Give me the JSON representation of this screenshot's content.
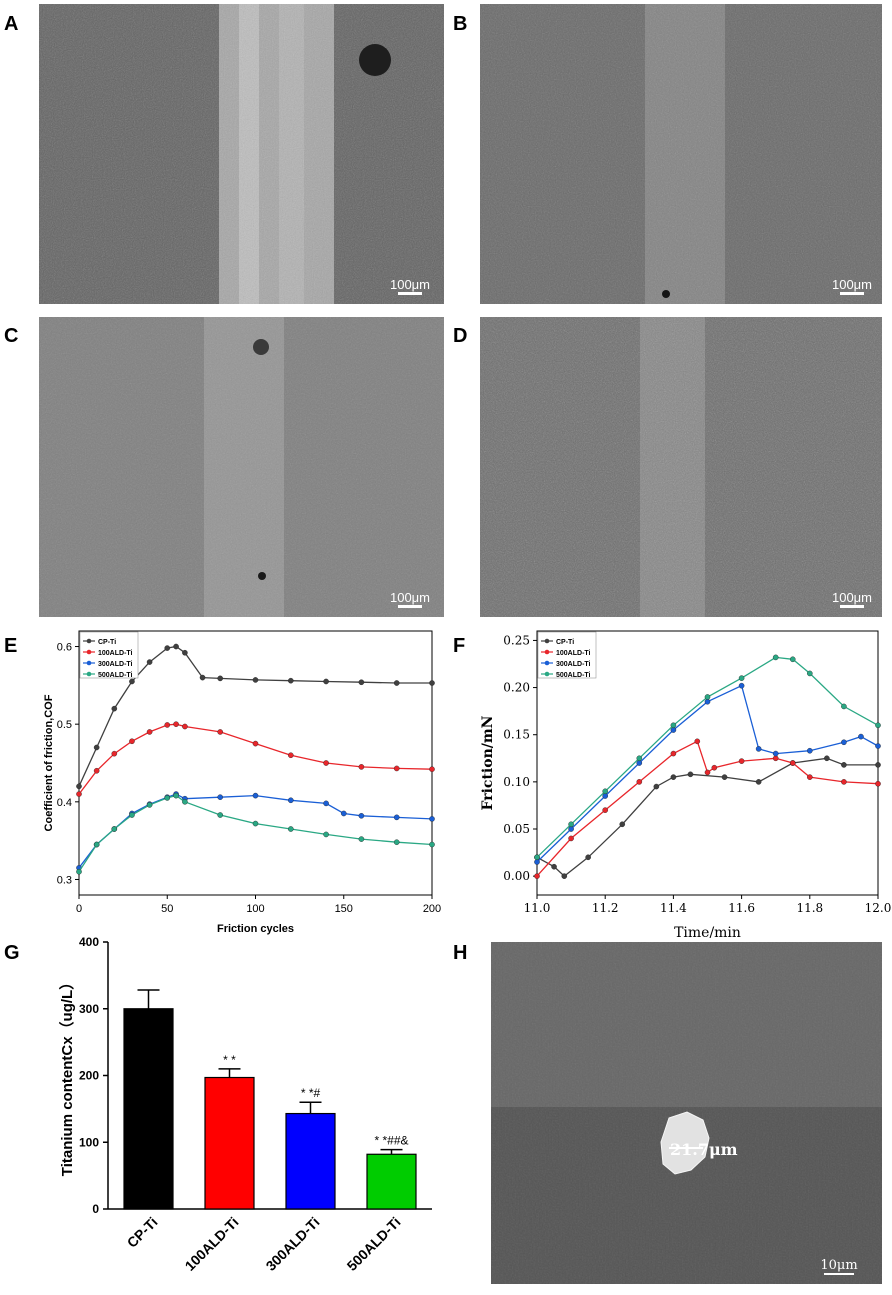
{
  "panels": {
    "A": {
      "letter": "A",
      "scale": "100μm"
    },
    "B": {
      "letter": "B",
      "scale": "100μm"
    },
    "C": {
      "letter": "C",
      "scale": "100μm"
    },
    "D": {
      "letter": "D",
      "scale": "100μm"
    },
    "E": {
      "letter": "E"
    },
    "F": {
      "letter": "F"
    },
    "G": {
      "letter": "G"
    },
    "H": {
      "letter": "H",
      "scale": "10μm",
      "particle_label": "21.7μm"
    }
  },
  "chart_data": [
    {
      "id": "E",
      "type": "line",
      "xlabel": "Friction cycles",
      "ylabel": "Coefficient of friction,COF",
      "xlim": [
        0,
        200
      ],
      "ylim": [
        0.28,
        0.62
      ],
      "xticks": [
        "0",
        "50",
        "100",
        "150",
        "200"
      ],
      "yticks": [
        "0.3",
        "0.4",
        "0.5",
        "0.6"
      ],
      "legend": "top-left",
      "series": [
        {
          "name": "CP-Ti",
          "color": "#404040",
          "x": [
            0,
            10,
            20,
            30,
            40,
            50,
            55,
            60,
            70,
            80,
            100,
            120,
            140,
            160,
            180,
            200
          ],
          "y": [
            0.42,
            0.47,
            0.52,
            0.555,
            0.58,
            0.598,
            0.6,
            0.592,
            0.56,
            0.559,
            0.557,
            0.556,
            0.555,
            0.554,
            0.553,
            0.553
          ]
        },
        {
          "name": "100ALD-Ti",
          "color": "#e8262b",
          "x": [
            0,
            10,
            20,
            30,
            40,
            50,
            55,
            60,
            80,
            100,
            120,
            140,
            160,
            180,
            200
          ],
          "y": [
            0.41,
            0.44,
            0.462,
            0.478,
            0.49,
            0.499,
            0.5,
            0.497,
            0.49,
            0.475,
            0.46,
            0.45,
            0.445,
            0.443,
            0.442
          ]
        },
        {
          "name": "300ALD-Ti",
          "color": "#1a5fd6",
          "x": [
            0,
            10,
            20,
            30,
            40,
            50,
            55,
            60,
            80,
            100,
            120,
            140,
            150,
            160,
            180,
            200
          ],
          "y": [
            0.315,
            0.345,
            0.365,
            0.385,
            0.397,
            0.406,
            0.41,
            0.404,
            0.406,
            0.408,
            0.402,
            0.398,
            0.385,
            0.382,
            0.38,
            0.378
          ]
        },
        {
          "name": "500ALD-Ti",
          "color": "#2aa884",
          "x": [
            0,
            10,
            20,
            30,
            40,
            50,
            55,
            60,
            80,
            100,
            120,
            140,
            160,
            180,
            200
          ],
          "y": [
            0.31,
            0.345,
            0.365,
            0.383,
            0.396,
            0.405,
            0.408,
            0.4,
            0.383,
            0.372,
            0.365,
            0.358,
            0.352,
            0.348,
            0.345
          ]
        }
      ]
    },
    {
      "id": "F",
      "type": "line",
      "xlabel": "Time/min",
      "ylabel": "Friction/mN",
      "xlim": [
        11.0,
        12.0
      ],
      "ylim": [
        -0.02,
        0.26
      ],
      "xticks": [
        "11.0",
        "11.2",
        "11.4",
        "11.6",
        "11.8",
        "12.0"
      ],
      "yticks": [
        "0.00",
        "0.05",
        "0.10",
        "0.15",
        "0.20",
        "0.25"
      ],
      "legend": "top-left",
      "series": [
        {
          "name": "CP-Ti",
          "color": "#404040",
          "x": [
            11.0,
            11.05,
            11.08,
            11.15,
            11.25,
            11.35,
            11.4,
            11.45,
            11.55,
            11.65,
            11.75,
            11.85,
            11.9,
            12.0
          ],
          "y": [
            0.02,
            0.01,
            0.0,
            0.02,
            0.055,
            0.095,
            0.105,
            0.108,
            0.105,
            0.1,
            0.12,
            0.125,
            0.118,
            0.118
          ]
        },
        {
          "name": "100ALD-Ti",
          "color": "#e8262b",
          "x": [
            11.0,
            11.1,
            11.2,
            11.3,
            11.4,
            11.47,
            11.5,
            11.52,
            11.6,
            11.7,
            11.75,
            11.8,
            11.9,
            12.0
          ],
          "y": [
            0.0,
            0.04,
            0.07,
            0.1,
            0.13,
            0.143,
            0.11,
            0.115,
            0.122,
            0.125,
            0.12,
            0.105,
            0.1,
            0.098
          ]
        },
        {
          "name": "300ALD-Ti",
          "color": "#1a5fd6",
          "x": [
            11.0,
            11.1,
            11.2,
            11.3,
            11.4,
            11.5,
            11.6,
            11.65,
            11.7,
            11.8,
            11.9,
            11.95,
            12.0
          ],
          "y": [
            0.015,
            0.05,
            0.085,
            0.12,
            0.155,
            0.185,
            0.202,
            0.135,
            0.13,
            0.133,
            0.142,
            0.148,
            0.138
          ]
        },
        {
          "name": "500ALD-Ti",
          "color": "#2aa884",
          "x": [
            11.0,
            11.1,
            11.2,
            11.3,
            11.4,
            11.5,
            11.6,
            11.7,
            11.75,
            11.8,
            11.9,
            12.0
          ],
          "y": [
            0.02,
            0.055,
            0.09,
            0.125,
            0.16,
            0.19,
            0.21,
            0.232,
            0.23,
            0.215,
            0.18,
            0.16
          ]
        }
      ]
    },
    {
      "id": "G",
      "type": "bar",
      "ylabel": "Titanium contentCx（ug/L）",
      "ylim": [
        0,
        400
      ],
      "yticks": [
        "0",
        "100",
        "200",
        "300",
        "400"
      ],
      "categories": [
        "CP-Ti",
        "100ALD-Ti",
        "300ALD-Ti",
        "500ALD-Ti"
      ],
      "values": [
        300,
        197,
        143,
        82
      ],
      "errors": [
        28,
        13,
        17,
        7
      ],
      "annotations": [
        "",
        "* *",
        "* *#",
        "* *##&"
      ],
      "colors": [
        "#000000",
        "#ff0000",
        "#0000ff",
        "#00cc00"
      ]
    }
  ]
}
